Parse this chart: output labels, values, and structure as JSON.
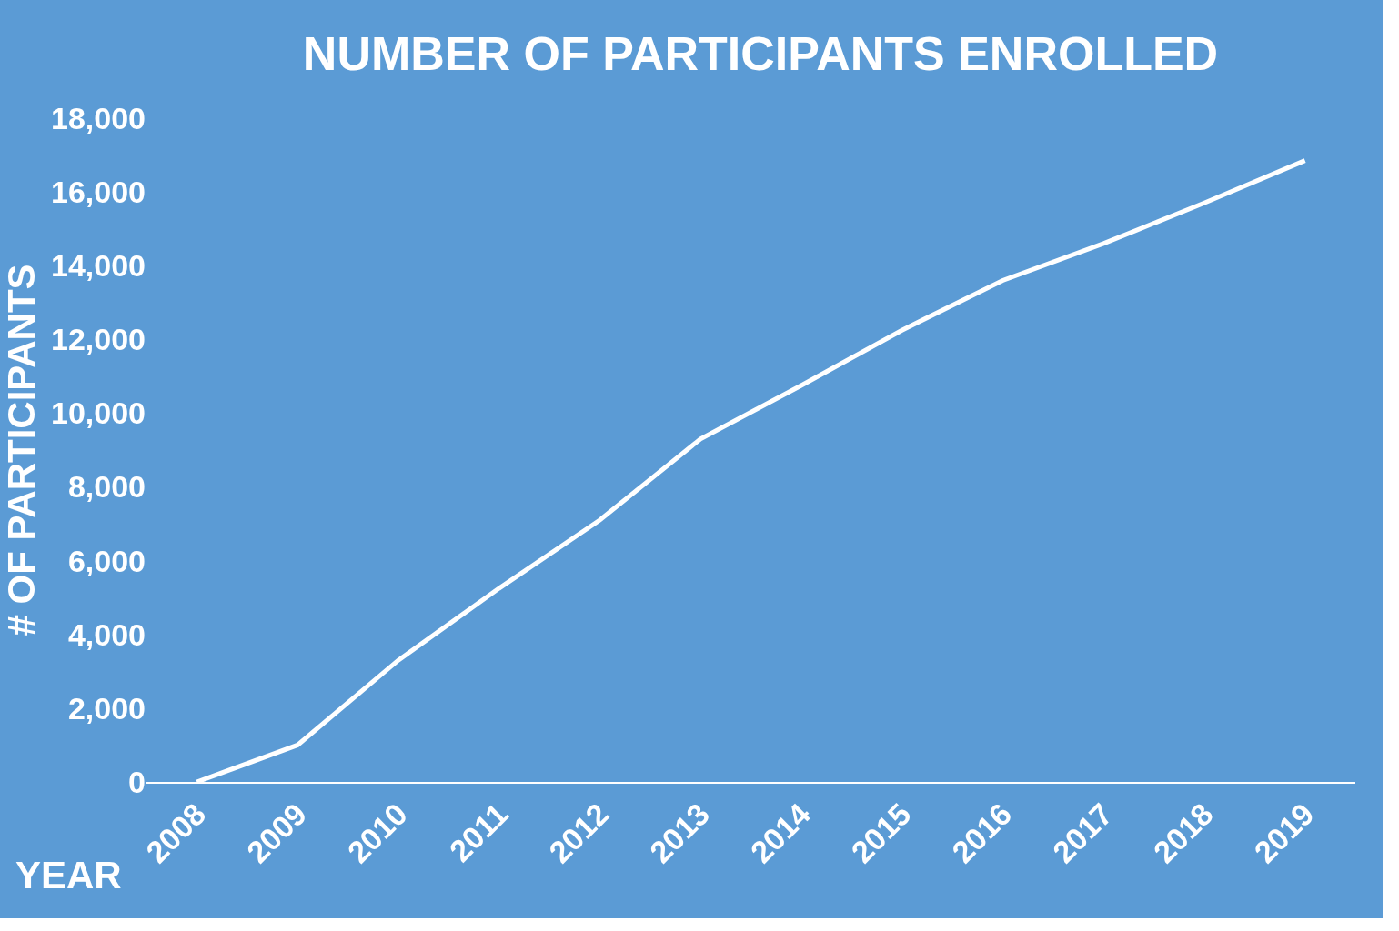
{
  "chart_data": {
    "type": "line",
    "title": "NUMBER OF PARTICIPANTS ENROLLED",
    "xlabel": "YEAR",
    "ylabel": "# OF PARTICIPANTS",
    "categories": [
      "2008",
      "2009",
      "2010",
      "2011",
      "2012",
      "2013",
      "2014",
      "2015",
      "2016",
      "2017",
      "2018",
      "2019"
    ],
    "series": [
      {
        "color": "#ffffff",
        "values": [
          0,
          1000,
          3300,
          5250,
          7100,
          9300,
          10750,
          12250,
          13600,
          14600,
          15700,
          16850
        ]
      }
    ],
    "ylim": [
      0,
      18000
    ],
    "yticks": [
      {
        "value": 0,
        "label": "0"
      },
      {
        "value": 2000,
        "label": "2,000"
      },
      {
        "value": 4000,
        "label": "4,000"
      },
      {
        "value": 6000,
        "label": "6,000"
      },
      {
        "value": 8000,
        "label": "8,000"
      },
      {
        "value": 10000,
        "label": "10,000"
      },
      {
        "value": 12000,
        "label": "12,000"
      },
      {
        "value": 14000,
        "label": "14,000"
      },
      {
        "value": 16000,
        "label": "16,000"
      },
      {
        "value": 18000,
        "label": "18,000"
      }
    ],
    "grid": false,
    "marker": "none",
    "line_style": "solid"
  }
}
